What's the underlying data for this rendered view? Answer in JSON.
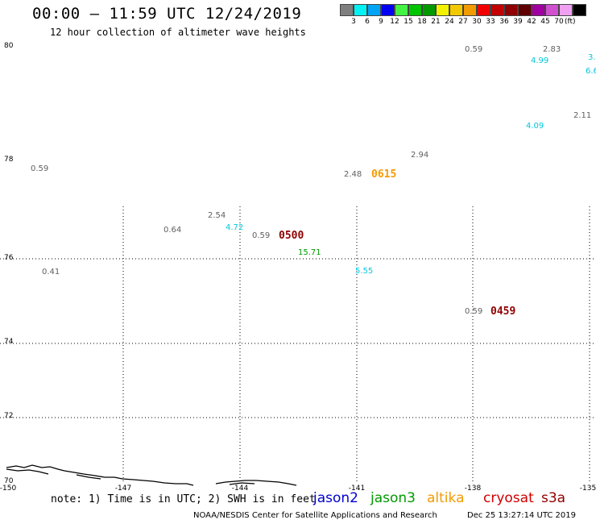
{
  "title": "00:00 – 11:59 UTC 12/24/2019",
  "subtitle": "12 hour collection of altimeter wave heights",
  "colorbar": {
    "colors": [
      "#7f7f7f",
      "#00f2f2",
      "#00a4f4",
      "#0000f2",
      "#44f244",
      "#00c400",
      "#009a00",
      "#f2f200",
      "#f2c800",
      "#f29b00",
      "#f20000",
      "#c20000",
      "#900000",
      "#600000",
      "#a000a0",
      "#d050d0",
      "#f0a0f0",
      "#000000"
    ],
    "ticks": [
      "3",
      "6",
      "9",
      "12",
      "15",
      "18",
      "21",
      "24",
      "27",
      "30",
      "33",
      "36",
      "39",
      "42",
      "45",
      "70"
    ],
    "unit": "(ft)"
  },
  "map": {
    "lat_labels": [
      "80",
      "78",
      "76",
      "74",
      "72",
      "70"
    ],
    "lon_labels": [
      "-150",
      "-147",
      "-144",
      "-141",
      "-138",
      "-135"
    ]
  },
  "observations": [
    {
      "text": "0.59",
      "color": "#606060"
    },
    {
      "text": "2.83",
      "color": "#606060"
    },
    {
      "text": "3.",
      "color": "#00c8dc"
    },
    {
      "text": "4.99",
      "color": "#00c8dc"
    },
    {
      "text": "6.6",
      "color": "#00c8dc"
    },
    {
      "text": "2.11",
      "color": "#606060"
    },
    {
      "text": "4.09",
      "color": "#00c8dc"
    },
    {
      "text": "2.94",
      "color": "#606060"
    },
    {
      "text": "0.59",
      "color": "#606060"
    },
    {
      "text": "2.48",
      "color": "#606060"
    },
    {
      "text": "2.54",
      "color": "#606060"
    },
    {
      "text": "0.64",
      "color": "#606060"
    },
    {
      "text": "4.72",
      "color": "#00c8dc"
    },
    {
      "text": "0.59",
      "color": "#606060"
    },
    {
      "text": "15.71",
      "color": "#009a00"
    },
    {
      "text": "0.41",
      "color": "#606060"
    },
    {
      "text": "5.55",
      "color": "#00c8dc"
    },
    {
      "text": "0.59",
      "color": "#606060"
    }
  ],
  "pass_times": [
    {
      "text": "0615",
      "color": "#f29b00"
    },
    {
      "text": "0500",
      "color": "#900000"
    },
    {
      "text": "0459",
      "color": "#900000"
    }
  ],
  "note": "note: 1) Time is in UTC; 2) SWH is in feet",
  "satellites": [
    {
      "name": "jason2",
      "color": "#0000d0"
    },
    {
      "name": "jason3",
      "color": "#009a00"
    },
    {
      "name": "altika",
      "color": "#f29b00"
    },
    {
      "name": "cryosat",
      "color": "#d00000"
    },
    {
      "name": "s3a",
      "color": "#900000"
    }
  ],
  "footer": "NOAA/NESDIS Center for Satellite Applications and Research",
  "timestamp": "Dec 25 13:27:14 UTC 2019"
}
